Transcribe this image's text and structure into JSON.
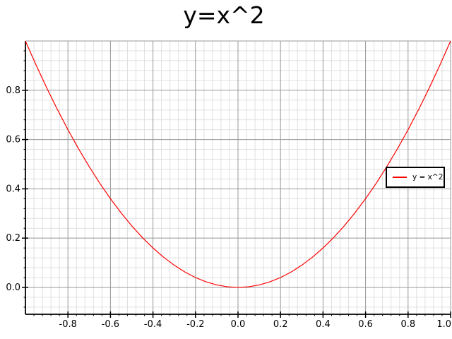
{
  "chart_data": {
    "type": "line",
    "title": "y=x^2",
    "xlabel": "",
    "ylabel": "",
    "xlim": [
      -1.0,
      1.0
    ],
    "ylim": [
      -0.109,
      1.0
    ],
    "minor_tick_step": 0.04,
    "major_tick_step": 0.2,
    "grid": {
      "show_minor": true,
      "minor_color": "#e0e0e0",
      "major_color": "#989898",
      "axis_color": "#000000"
    },
    "x_tick_values": [
      -0.8,
      -0.6,
      -0.4,
      -0.2,
      0.0,
      0.2,
      0.4,
      0.6,
      0.8,
      1.0
    ],
    "x_tick_labels": [
      "-0.8",
      "-0.6",
      "-0.4",
      "-0.2",
      "0.0",
      "0.2",
      "0.4",
      "0.6",
      "0.8",
      "1.0"
    ],
    "y_tick_values": [
      0.0,
      0.2,
      0.4,
      0.6,
      0.8
    ],
    "y_tick_labels": [
      "0.0",
      "0.2",
      "0.4",
      "0.6",
      "0.8"
    ],
    "x_major_gridlines": [
      -0.8,
      -0.6,
      -0.4,
      -0.2,
      0.0,
      0.2,
      0.4,
      0.6,
      0.8,
      1.0
    ],
    "y_major_gridlines": [
      0.0,
      0.2,
      0.4,
      0.6,
      0.8,
      1.0
    ],
    "series": [
      {
        "name": "y = x^2",
        "color": "#ff0000",
        "x": [
          -1,
          -0.95,
          -0.9,
          -0.85,
          -0.8,
          -0.75,
          -0.7,
          -0.65,
          -0.6,
          -0.55,
          -0.5,
          -0.45,
          -0.4,
          -0.35,
          -0.3,
          -0.25,
          -0.2,
          -0.15,
          -0.1,
          -0.05,
          0,
          0.05,
          0.1,
          0.15,
          0.2,
          0.25,
          0.3,
          0.35,
          0.4,
          0.45,
          0.5,
          0.55,
          0.6,
          0.65,
          0.7,
          0.75,
          0.8,
          0.85,
          0.9,
          0.95,
          1
        ],
        "y": [
          1,
          0.9025,
          0.81,
          0.7225,
          0.64,
          0.5625,
          0.49,
          0.4225,
          0.36,
          0.3025,
          0.25,
          0.2025,
          0.16,
          0.1225,
          0.09,
          0.0625,
          0.04,
          0.0225,
          0.01,
          0.0025,
          0,
          0.0025,
          0.01,
          0.0225,
          0.04,
          0.0625,
          0.09,
          0.1225,
          0.16,
          0.2025,
          0.25,
          0.3025,
          0.36,
          0.4225,
          0.49,
          0.5625,
          0.64,
          0.7225,
          0.81,
          0.9025,
          1
        ]
      }
    ],
    "legend": {
      "label": "y = x^2",
      "position": "middle-right",
      "border_color": "#000000",
      "background": "#ffffff"
    }
  }
}
